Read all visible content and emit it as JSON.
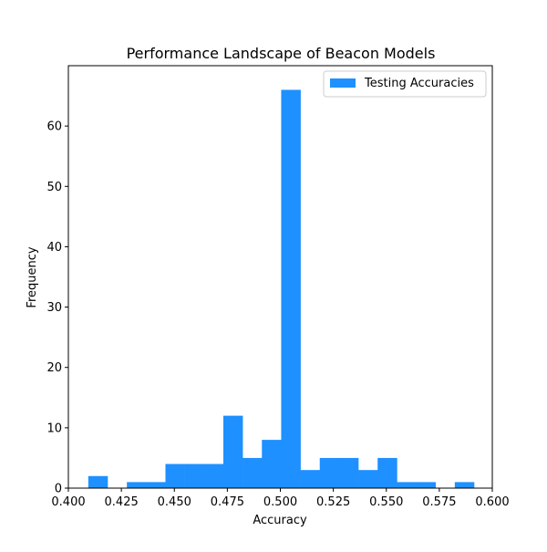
{
  "chart_data": {
    "type": "bar",
    "title": "Performance Landscape of Beacon Models",
    "xlabel": "Accuracy",
    "ylabel": "Frequency",
    "xlim": [
      0.4,
      0.6
    ],
    "ylim": [
      0,
      70
    ],
    "x_ticks": [
      0.4,
      0.425,
      0.45,
      0.475,
      0.5,
      0.525,
      0.55,
      0.575,
      0.6
    ],
    "x_tick_labels": [
      "0.400",
      "0.425",
      "0.450",
      "0.475",
      "0.500",
      "0.525",
      "0.550",
      "0.575",
      "0.600"
    ],
    "y_ticks": [
      0,
      10,
      20,
      30,
      40,
      50,
      60
    ],
    "y_tick_labels": [
      "0",
      "10",
      "20",
      "30",
      "40",
      "50",
      "60"
    ],
    "grid": false,
    "legend_position": "top-right",
    "series": [
      {
        "name": "Testing Accuracies",
        "color": "#1e90ff",
        "bin_edges": [
          0.4094,
          0.4185,
          0.4276,
          0.4367,
          0.4458,
          0.4549,
          0.464,
          0.4731,
          0.4822,
          0.4913,
          0.5004,
          0.5095,
          0.5186,
          0.5277,
          0.5368,
          0.5459,
          0.555,
          0.5641,
          0.5732,
          0.5823,
          0.5914
        ],
        "counts": [
          2,
          0,
          1,
          1,
          4,
          4,
          4,
          12,
          5,
          8,
          66,
          3,
          5,
          5,
          3,
          5,
          1,
          1,
          0,
          1
        ]
      }
    ]
  }
}
